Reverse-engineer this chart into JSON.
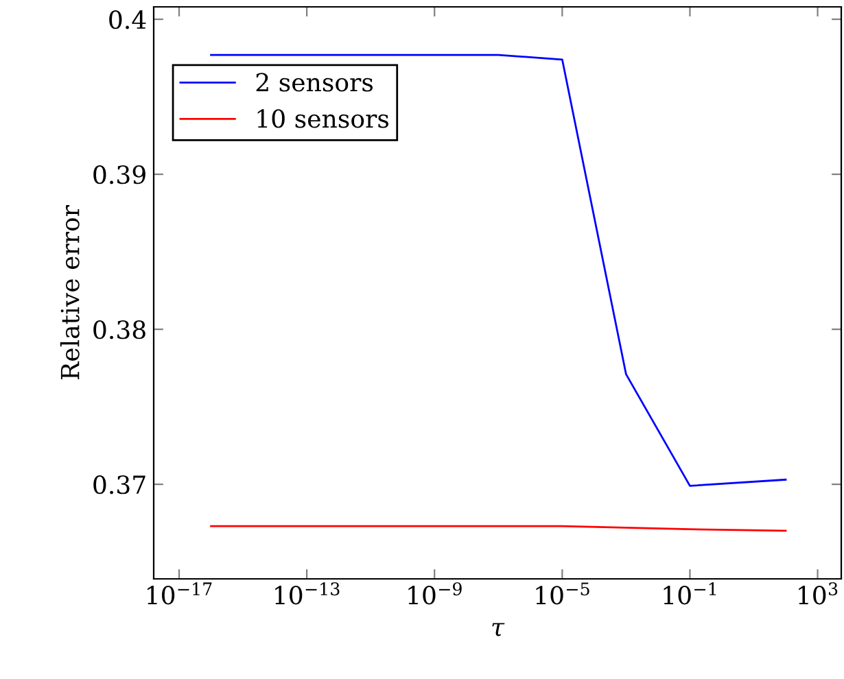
{
  "chart_data": {
    "type": "line",
    "xlabel": "τ",
    "ylabel": "Relative error",
    "log": "x",
    "x": [
      1e-16,
      1e-07,
      1e-05,
      0.001,
      0.1,
      100.0
    ],
    "series": [
      {
        "name": "2 sensors",
        "color": "#0000ff",
        "values": [
          0.3977,
          0.3977,
          0.3974,
          0.3771,
          0.3699,
          0.3703
        ]
      },
      {
        "name": "10 sensors",
        "color": "#ff0000",
        "values": [
          0.3673,
          0.3673,
          0.3673,
          0.3672,
          0.3671,
          0.367
        ]
      }
    ],
    "xlim": [
      1.6e-18,
      5500.0
    ],
    "ylim": [
      0.3639,
      0.4008
    ],
    "xticks": [
      {
        "value": 1e-17,
        "label": "10$^{−17}$"
      },
      {
        "value": 1e-13,
        "label": "10$^{−13}$"
      },
      {
        "value": 1e-09,
        "label": "10$^{−9}$"
      },
      {
        "value": 1e-05,
        "label": "10$^{−5}$"
      },
      {
        "value": 0.1,
        "label": "10$^{−1}$"
      },
      {
        "value": 1000.0,
        "label": "10$^{3}$"
      }
    ],
    "yticks": [
      0.37,
      0.38,
      0.39,
      0.4
    ],
    "grid": false,
    "legend": "top left",
    "marker": "none",
    "line_style": "solid"
  }
}
